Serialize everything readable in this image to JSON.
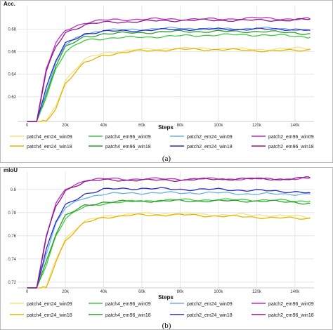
{
  "colors": {
    "patch4_em24_win09": "#f2e28c",
    "patch4_em24_win18": "#e5b400",
    "patch4_em96_win09": "#3dcf3d",
    "patch4_em96_win18": "#2e9e2e",
    "patch2_em24_win09": "#66b3e6",
    "patch2_em24_win18": "#2a2acc",
    "patch2_em96_win09": "#c02fc0",
    "patch2_em96_win18": "#8a1a8a"
  },
  "chart_data": [
    {
      "type": "line",
      "panel_label": "(a)",
      "title": "Acc.",
      "xlabel": "Steps",
      "ylabel": "",
      "xlim": [
        -5000,
        150000
      ],
      "ylim": [
        0.598,
        0.701
      ],
      "x_ticks": [
        0,
        20000,
        40000,
        60000,
        80000,
        100000,
        120000,
        140000
      ],
      "x_tick_labels": [
        "0",
        "20k",
        "40k",
        "60k",
        "80k",
        "100k",
        "120k",
        "140k"
      ],
      "y_ticks": [
        0.62,
        0.64,
        0.66,
        0.68
      ],
      "y_tick_labels": [
        "0.62",
        "0.64",
        "0.66",
        "0.68"
      ],
      "grid": true,
      "legend_position": "bottom",
      "x": [
        0,
        5000,
        10000,
        15000,
        20000,
        30000,
        40000,
        60000,
        80000,
        100000,
        120000,
        140000,
        148000
      ],
      "series": [
        {
          "name": "patch4_em24_win09",
          "color_key": "patch4_em24_win09",
          "values": [
            0.598,
            0.598,
            0.598,
            0.612,
            0.635,
            0.653,
            0.659,
            0.662,
            0.663,
            0.663,
            0.662,
            0.663,
            0.663
          ]
        },
        {
          "name": "patch4_em24_win18",
          "color_key": "patch4_em24_win18",
          "values": [
            0.598,
            0.598,
            0.598,
            0.61,
            0.632,
            0.65,
            0.657,
            0.661,
            0.662,
            0.662,
            0.661,
            0.661,
            0.662
          ]
        },
        {
          "name": "patch4_em96_win09",
          "color_key": "patch4_em96_win09",
          "values": [
            0.598,
            0.598,
            0.62,
            0.645,
            0.66,
            0.67,
            0.672,
            0.673,
            0.674,
            0.675,
            0.675,
            0.674,
            0.673
          ]
        },
        {
          "name": "patch4_em96_win18",
          "color_key": "patch4_em96_win18",
          "values": [
            0.598,
            0.598,
            0.622,
            0.648,
            0.664,
            0.673,
            0.676,
            0.677,
            0.678,
            0.678,
            0.678,
            0.677,
            0.676
          ]
        },
        {
          "name": "patch2_em24_win09",
          "color_key": "patch2_em24_win09",
          "values": [
            0.598,
            0.598,
            0.625,
            0.65,
            0.666,
            0.676,
            0.679,
            0.68,
            0.681,
            0.68,
            0.681,
            0.68,
            0.679
          ]
        },
        {
          "name": "patch2_em24_win18",
          "color_key": "patch2_em24_win18",
          "values": [
            0.598,
            0.598,
            0.628,
            0.652,
            0.667,
            0.676,
            0.678,
            0.679,
            0.68,
            0.68,
            0.68,
            0.68,
            0.679
          ]
        },
        {
          "name": "patch2_em96_win09",
          "color_key": "patch2_em96_win09",
          "values": [
            0.598,
            0.598,
            0.645,
            0.667,
            0.679,
            0.686,
            0.688,
            0.689,
            0.689,
            0.689,
            0.69,
            0.689,
            0.689
          ]
        },
        {
          "name": "patch2_em96_win18",
          "color_key": "patch2_em96_win18",
          "values": [
            0.598,
            0.598,
            0.642,
            0.664,
            0.677,
            0.684,
            0.686,
            0.687,
            0.688,
            0.688,
            0.688,
            0.688,
            0.689
          ]
        }
      ]
    },
    {
      "type": "line",
      "panel_label": "(b)",
      "title": "mIoU",
      "xlabel": "Steps",
      "ylabel": "",
      "xlim": [
        -5000,
        150000
      ],
      "ylim": [
        0.715,
        0.815
      ],
      "x_ticks": [
        0,
        20000,
        40000,
        60000,
        80000,
        100000,
        120000,
        140000
      ],
      "x_tick_labels": [
        "0",
        "20k",
        "40k",
        "60k",
        "80k",
        "100k",
        "120k",
        "140k"
      ],
      "y_ticks": [
        0.72,
        0.74,
        0.76,
        0.78,
        0.8
      ],
      "y_tick_labels": [
        "0.72",
        "0.74",
        "0.76",
        "0.78",
        "0.8"
      ],
      "grid": true,
      "legend_position": "bottom",
      "x": [
        0,
        5000,
        10000,
        15000,
        20000,
        30000,
        40000,
        60000,
        80000,
        100000,
        120000,
        140000,
        148000
      ],
      "series": [
        {
          "name": "patch4_em24_win09",
          "color_key": "patch4_em24_win09",
          "values": [
            0.715,
            0.715,
            0.715,
            0.74,
            0.758,
            0.772,
            0.777,
            0.779,
            0.779,
            0.778,
            0.778,
            0.777,
            0.776
          ]
        },
        {
          "name": "patch4_em24_win18",
          "color_key": "patch4_em24_win18",
          "values": [
            0.715,
            0.715,
            0.715,
            0.738,
            0.756,
            0.771,
            0.776,
            0.778,
            0.778,
            0.777,
            0.776,
            0.775,
            0.775
          ]
        },
        {
          "name": "patch4_em96_win09",
          "color_key": "patch4_em96_win09",
          "values": [
            0.715,
            0.715,
            0.735,
            0.76,
            0.775,
            0.785,
            0.788,
            0.79,
            0.791,
            0.791,
            0.791,
            0.79,
            0.79
          ]
        },
        {
          "name": "patch4_em96_win18",
          "color_key": "patch4_em96_win18",
          "values": [
            0.715,
            0.715,
            0.738,
            0.762,
            0.777,
            0.786,
            0.789,
            0.79,
            0.79,
            0.79,
            0.79,
            0.789,
            0.788
          ]
        },
        {
          "name": "patch2_em24_win09",
          "color_key": "patch2_em24_win09",
          "values": [
            0.715,
            0.715,
            0.745,
            0.77,
            0.784,
            0.793,
            0.796,
            0.797,
            0.797,
            0.797,
            0.796,
            0.796,
            0.796
          ]
        },
        {
          "name": "patch2_em24_win18",
          "color_key": "patch2_em24_win18",
          "values": [
            0.715,
            0.715,
            0.748,
            0.772,
            0.786,
            0.796,
            0.8,
            0.801,
            0.8,
            0.8,
            0.799,
            0.798,
            0.797
          ]
        },
        {
          "name": "patch2_em96_win09",
          "color_key": "patch2_em96_win09",
          "values": [
            0.715,
            0.715,
            0.76,
            0.787,
            0.8,
            0.808,
            0.809,
            0.809,
            0.809,
            0.809,
            0.809,
            0.809,
            0.81
          ]
        },
        {
          "name": "patch2_em96_win18",
          "color_key": "patch2_em96_win18",
          "values": [
            0.715,
            0.715,
            0.758,
            0.785,
            0.799,
            0.807,
            0.808,
            0.808,
            0.808,
            0.809,
            0.809,
            0.809,
            0.81
          ]
        }
      ]
    }
  ]
}
